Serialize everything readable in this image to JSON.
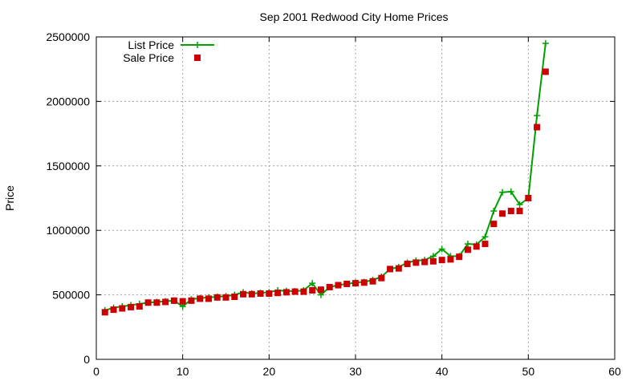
{
  "chart_data": {
    "type": "line",
    "title": "Sep 2001 Redwood City Home Prices",
    "xlabel": "",
    "ylabel": "Price",
    "xlim": [
      0,
      60
    ],
    "ylim": [
      0,
      2500000
    ],
    "xticks": [
      0,
      10,
      20,
      30,
      40,
      50,
      60
    ],
    "yticks": [
      0,
      500000,
      1000000,
      1500000,
      2000000,
      2500000
    ],
    "grid": true,
    "legend_position": "top-left",
    "series": [
      {
        "name": "List Price",
        "style": "line+cross",
        "color": "#00a000",
        "x": [
          1,
          2,
          3,
          4,
          5,
          6,
          7,
          8,
          9,
          10,
          11,
          12,
          13,
          14,
          15,
          16,
          17,
          18,
          19,
          20,
          21,
          22,
          23,
          24,
          25,
          26,
          27,
          28,
          29,
          30,
          31,
          32,
          33,
          34,
          35,
          36,
          37,
          38,
          39,
          40,
          41,
          42,
          43,
          44,
          45,
          46,
          47,
          48,
          49,
          50,
          51,
          52
        ],
        "values": [
          380000,
          400000,
          410000,
          420000,
          430000,
          440000,
          445000,
          450000,
          455000,
          410000,
          465000,
          475000,
          480000,
          485000,
          490000,
          500000,
          520000,
          510000,
          515000,
          520000,
          535000,
          530000,
          528000,
          535000,
          590000,
          500000,
          560000,
          575000,
          585000,
          595000,
          600000,
          615000,
          640000,
          700000,
          715000,
          750000,
          765000,
          770000,
          800000,
          855000,
          800000,
          800000,
          895000,
          890000,
          950000,
          1150000,
          1295000,
          1300000,
          1200000,
          1250000,
          1890000,
          2450000
        ]
      },
      {
        "name": "Sale Price",
        "style": "square",
        "color": "#cc0000",
        "x": [
          1,
          2,
          3,
          4,
          5,
          6,
          7,
          8,
          9,
          10,
          11,
          12,
          13,
          14,
          15,
          16,
          17,
          18,
          19,
          20,
          21,
          22,
          23,
          24,
          25,
          26,
          27,
          28,
          29,
          30,
          31,
          32,
          33,
          34,
          35,
          36,
          37,
          38,
          39,
          40,
          41,
          42,
          43,
          44,
          45,
          46,
          47,
          48,
          49,
          50,
          51,
          52
        ],
        "values": [
          365000,
          385000,
          395000,
          405000,
          410000,
          440000,
          440000,
          445000,
          455000,
          450000,
          455000,
          470000,
          470000,
          480000,
          480000,
          485000,
          505000,
          505000,
          510000,
          510000,
          515000,
          520000,
          525000,
          525000,
          535000,
          540000,
          560000,
          575000,
          585000,
          590000,
          595000,
          605000,
          630000,
          700000,
          705000,
          740000,
          750000,
          755000,
          760000,
          770000,
          775000,
          795000,
          850000,
          875000,
          895000,
          1050000,
          1130000,
          1150000,
          1150000,
          1250000,
          1800000,
          2230000
        ]
      }
    ]
  }
}
